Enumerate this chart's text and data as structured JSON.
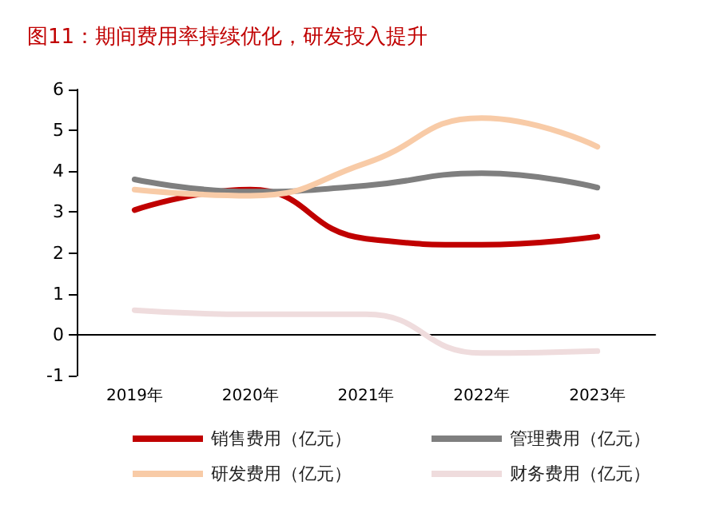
{
  "chart_data": {
    "type": "line",
    "title": "图11：期间费用率持续优化，研发投入提升",
    "categories": [
      "2019年",
      "2020年",
      "2021年",
      "2022年",
      "2023年"
    ],
    "series": [
      {
        "name": "销售费用（亿元）",
        "color": "#c00000",
        "values": [
          3.05,
          3.55,
          2.35,
          2.2,
          2.4
        ]
      },
      {
        "name": "管理费用（亿元）",
        "color": "#7f7f7f",
        "values": [
          3.8,
          3.5,
          3.65,
          3.95,
          3.6
        ]
      },
      {
        "name": "研发费用（亿元）",
        "color": "#f8cba7",
        "values": [
          3.55,
          3.4,
          4.2,
          5.3,
          4.6
        ]
      },
      {
        "name": "财务费用（亿元）",
        "color": "#efdcdd",
        "values": [
          0.6,
          0.5,
          0.5,
          -0.45,
          -0.4
        ]
      }
    ],
    "ylim": [
      -1,
      6
    ],
    "yticks": [
      -1,
      0,
      1,
      2,
      3,
      4,
      5,
      6
    ],
    "legend": "bottom",
    "marker": "none",
    "line_style": "solid"
  }
}
